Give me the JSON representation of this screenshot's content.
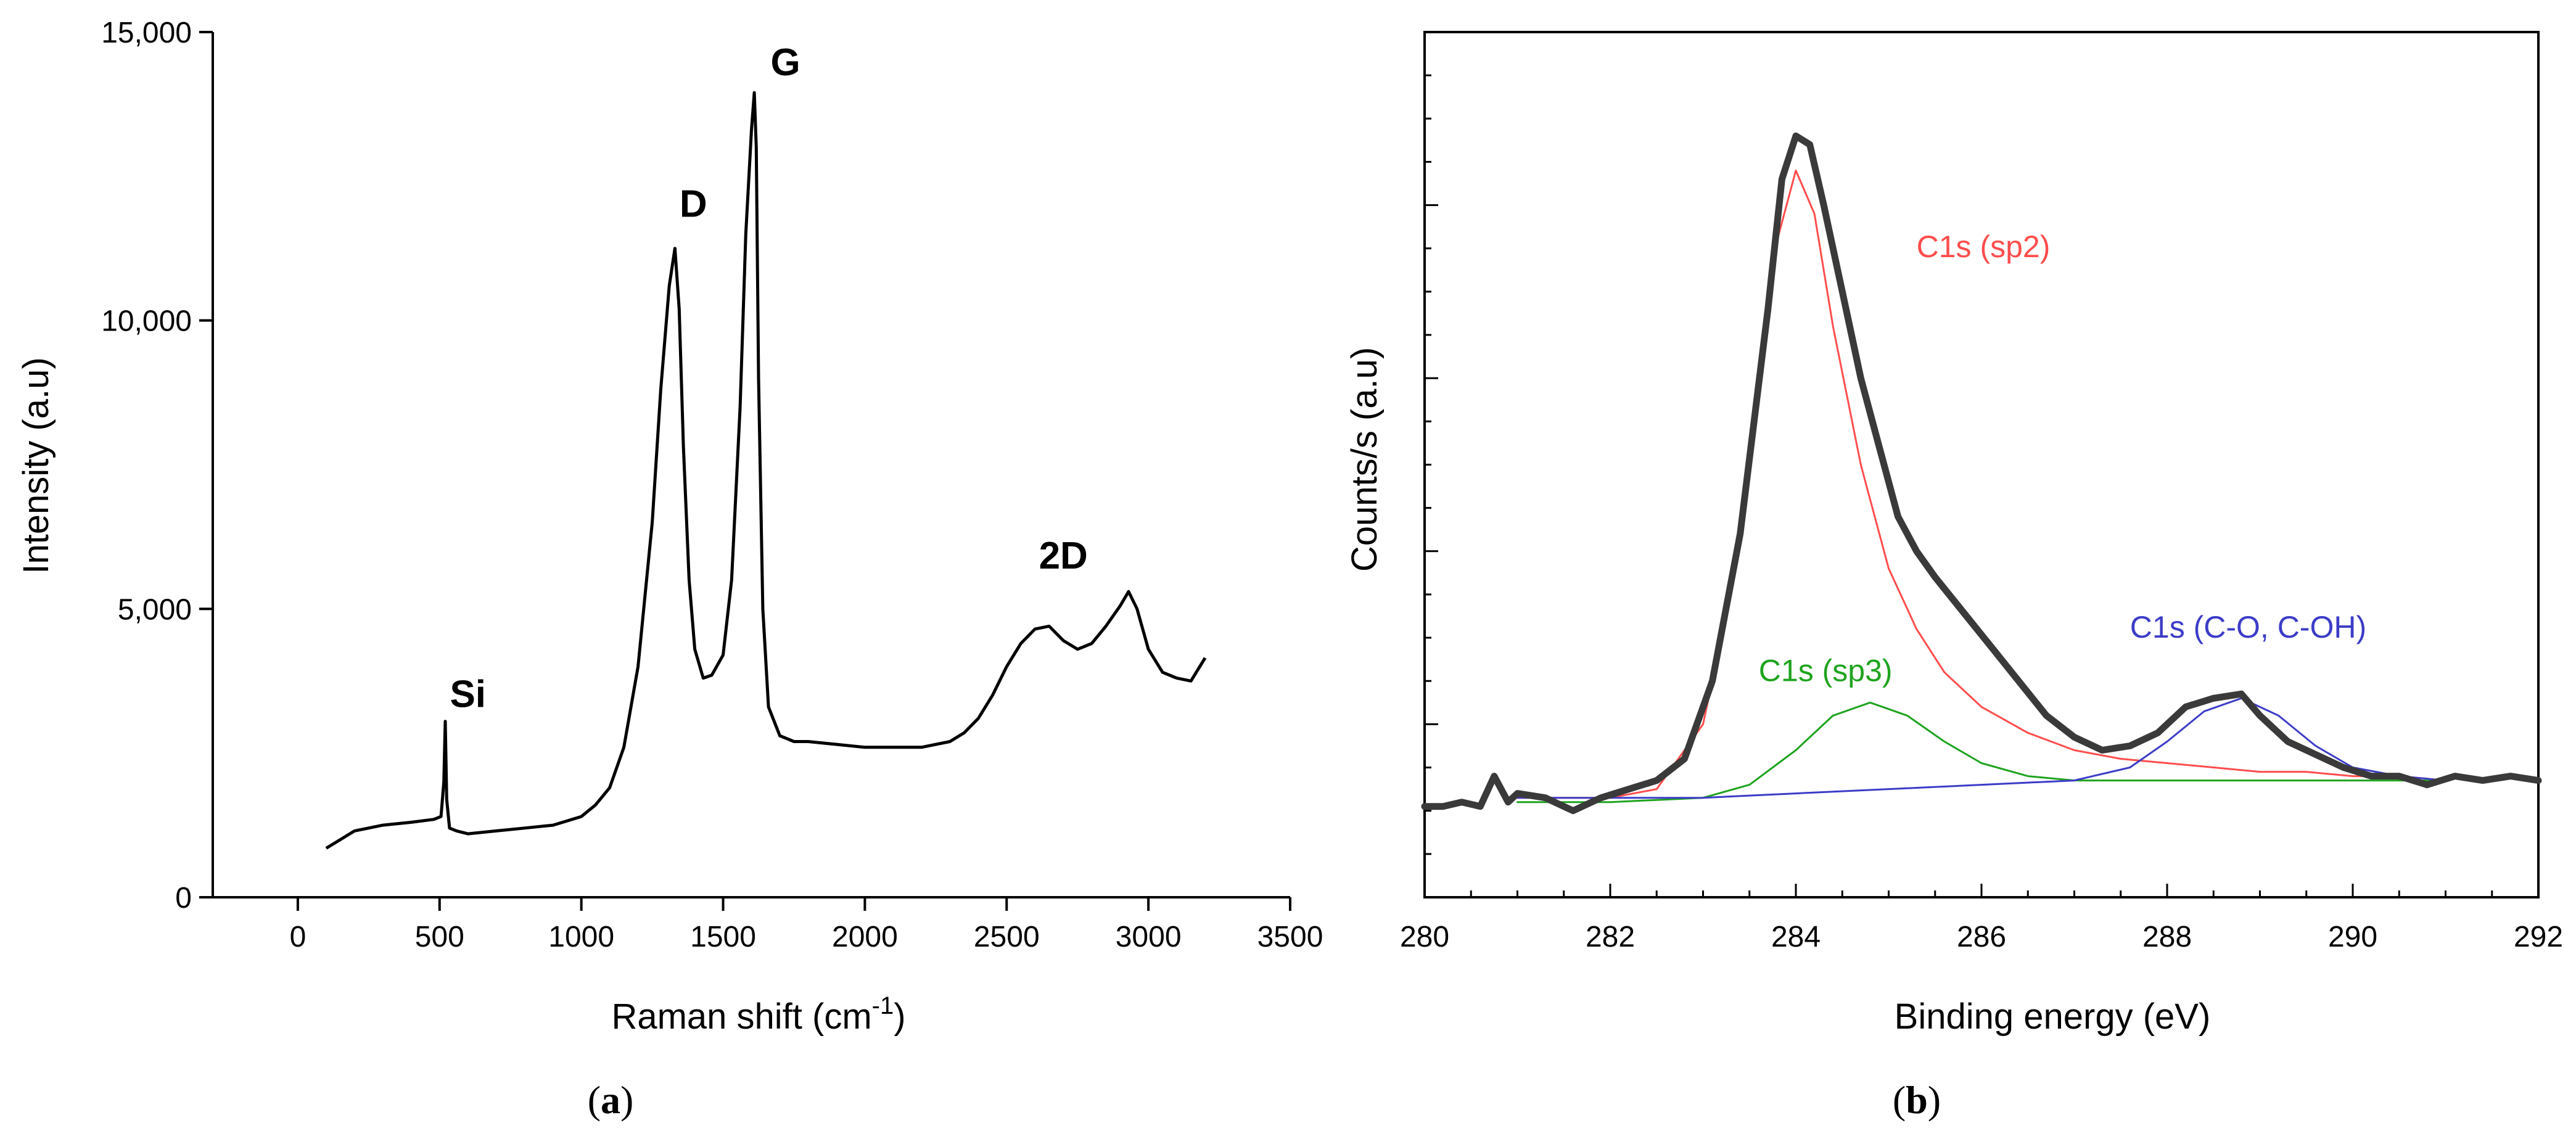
{
  "chart_data": [
    {
      "panel": "a",
      "type": "line",
      "xlabel": "Raman shift (cm",
      "xlabel_sup": "-1",
      "xlabel_close": ")",
      "ylabel": "Intensity (a.u)",
      "xlim": [
        -300,
        3500
      ],
      "ylim": [
        0,
        15000
      ],
      "x_ticks": [
        0,
        500,
        1000,
        1500,
        2000,
        2500,
        3000,
        3500
      ],
      "x_tick_labels": [
        "0",
        "500",
        "1000",
        "1500",
        "2000",
        "2500",
        "3000",
        "3500"
      ],
      "y_ticks": [
        0,
        5000,
        10000,
        15000
      ],
      "y_tick_labels": [
        "0",
        "5,000",
        "10,000",
        "15,000"
      ],
      "line_color": "#000000",
      "series": [
        {
          "name": "Raman spectrum",
          "x": [
            100,
            150,
            200,
            300,
            400,
            480,
            505,
            515,
            520,
            525,
            535,
            560,
            600,
            700,
            800,
            900,
            1000,
            1050,
            1100,
            1150,
            1200,
            1250,
            1280,
            1310,
            1330,
            1345,
            1360,
            1380,
            1400,
            1430,
            1460,
            1500,
            1530,
            1560,
            1580,
            1600,
            1610,
            1617,
            1625,
            1640,
            1660,
            1700,
            1750,
            1800,
            1900,
            2000,
            2100,
            2200,
            2300,
            2350,
            2400,
            2450,
            2500,
            2550,
            2600,
            2650,
            2700,
            2750,
            2800,
            2850,
            2900,
            2930,
            2960,
            3000,
            3050,
            3100,
            3150,
            3200
          ],
          "y": [
            850,
            1000,
            1150,
            1250,
            1300,
            1350,
            1400,
            2000,
            3050,
            1700,
            1200,
            1150,
            1100,
            1150,
            1200,
            1250,
            1400,
            1600,
            1900,
            2600,
            4000,
            6500,
            8800,
            10600,
            11250,
            10200,
            7800,
            5500,
            4300,
            3800,
            3850,
            4200,
            5500,
            8500,
            11500,
            13300,
            13950,
            13000,
            9000,
            5000,
            3300,
            2800,
            2700,
            2700,
            2650,
            2600,
            2600,
            2600,
            2700,
            2850,
            3100,
            3500,
            4000,
            4400,
            4650,
            4700,
            4450,
            4300,
            4400,
            4700,
            5050,
            5300,
            5000,
            4300,
            3900,
            3800,
            3750,
            4150
          ]
        }
      ],
      "annotations": [
        {
          "text": "Si",
          "x": 600,
          "y": 3300
        },
        {
          "text": "D",
          "x": 1395,
          "y": 11800
        },
        {
          "text": "G",
          "x": 1720,
          "y": 14250
        },
        {
          "text": "2D",
          "x": 2700,
          "y": 5700
        }
      ],
      "panel_label": {
        "open": "(",
        "letter": "a",
        "close": ")"
      }
    },
    {
      "panel": "b",
      "type": "line",
      "xlabel": "Binding energy (eV)",
      "ylabel": "Counts/s (a.u)",
      "xlim": [
        280,
        292
      ],
      "ylim": [
        0,
        100
      ],
      "x_ticks": [
        280,
        282,
        284,
        286,
        288,
        290,
        292
      ],
      "x_tick_labels": [
        "280",
        "282",
        "284",
        "286",
        "288",
        "290",
        "292"
      ],
      "y_major_ticks": [
        20,
        40,
        60,
        80
      ],
      "y_tick_labels_shown": false,
      "series": [
        {
          "name": "Measured",
          "color": "#3a3a3a",
          "x": [
            280.0,
            280.2,
            280.4,
            280.6,
            280.75,
            280.9,
            281.0,
            281.3,
            281.6,
            281.9,
            282.2,
            282.5,
            282.8,
            283.1,
            283.4,
            283.7,
            283.85,
            284.0,
            284.15,
            284.3,
            284.5,
            284.7,
            284.9,
            285.1,
            285.3,
            285.5,
            285.8,
            286.1,
            286.4,
            286.7,
            287.0,
            287.3,
            287.6,
            287.9,
            288.2,
            288.5,
            288.8,
            289.0,
            289.3,
            289.6,
            289.9,
            290.2,
            290.5,
            290.8,
            291.1,
            291.4,
            291.7,
            292.0
          ],
          "y": [
            10.5,
            10.5,
            11.0,
            10.5,
            14.0,
            11.0,
            12.0,
            11.5,
            10.0,
            11.5,
            12.5,
            13.5,
            16.0,
            25.0,
            42.0,
            68.0,
            83.0,
            88.0,
            87.0,
            80.0,
            70.0,
            60.0,
            52.0,
            44.0,
            40.0,
            37.0,
            33.0,
            29.0,
            25.0,
            21.0,
            18.5,
            17.0,
            17.5,
            19.0,
            22.0,
            23.0,
            23.5,
            21.0,
            18.0,
            16.5,
            15.0,
            14.0,
            14.0,
            13.0,
            14.0,
            13.5,
            14.0,
            13.5
          ]
        },
        {
          "name": "C1s (sp2)",
          "color": "#ff4d4d",
          "x": [
            281.0,
            282.0,
            282.5,
            283.0,
            283.3,
            283.6,
            283.8,
            284.0,
            284.2,
            284.4,
            284.7,
            285.0,
            285.3,
            285.6,
            286.0,
            286.5,
            287.0,
            287.5,
            288.0,
            288.5,
            289.0,
            289.5,
            290.0,
            290.5,
            291.0
          ],
          "y": [
            11.5,
            11.5,
            12.5,
            20.0,
            35.0,
            60.0,
            76.0,
            84.0,
            79.0,
            66.0,
            50.0,
            38.0,
            31.0,
            26.0,
            22.0,
            19.0,
            17.0,
            16.0,
            15.5,
            15.0,
            14.5,
            14.5,
            14.0,
            14.0,
            13.5
          ]
        },
        {
          "name": "C1s (sp3)",
          "color": "#1fa31f",
          "x": [
            281.0,
            282.0,
            283.0,
            283.5,
            284.0,
            284.4,
            284.8,
            285.2,
            285.6,
            286.0,
            286.5,
            287.0,
            288.0,
            289.0,
            290.0,
            291.0
          ],
          "y": [
            11.0,
            11.0,
            11.5,
            13.0,
            17.0,
            21.0,
            22.5,
            21.0,
            18.0,
            15.5,
            14.0,
            13.5,
            13.5,
            13.5,
            13.5,
            13.5
          ]
        },
        {
          "name": "C1s (C-O, C-OH)",
          "color": "#3c3cc8",
          "x": [
            281.0,
            282.0,
            283.0,
            284.0,
            285.0,
            286.0,
            287.0,
            287.6,
            288.0,
            288.4,
            288.8,
            289.2,
            289.6,
            290.0,
            290.5,
            291.0
          ],
          "y": [
            11.5,
            11.5,
            11.5,
            12.0,
            12.5,
            13.0,
            13.5,
            15.0,
            18.0,
            21.5,
            23.0,
            21.0,
            17.5,
            15.0,
            14.0,
            13.5
          ]
        }
      ],
      "annotations": [
        {
          "text": "C1s (sp2)",
          "x": 285.3,
          "y": 74,
          "color": "#ff4d4d"
        },
        {
          "text": "C1s (sp3)",
          "x": 283.6,
          "y": 25,
          "color": "#1fa31f"
        },
        {
          "text": "C1s (C-O, C-OH)",
          "x": 287.6,
          "y": 30,
          "color": "#3c3cc8"
        }
      ],
      "panel_label": {
        "open": "(",
        "letter": "b",
        "close": ")"
      }
    }
  ]
}
